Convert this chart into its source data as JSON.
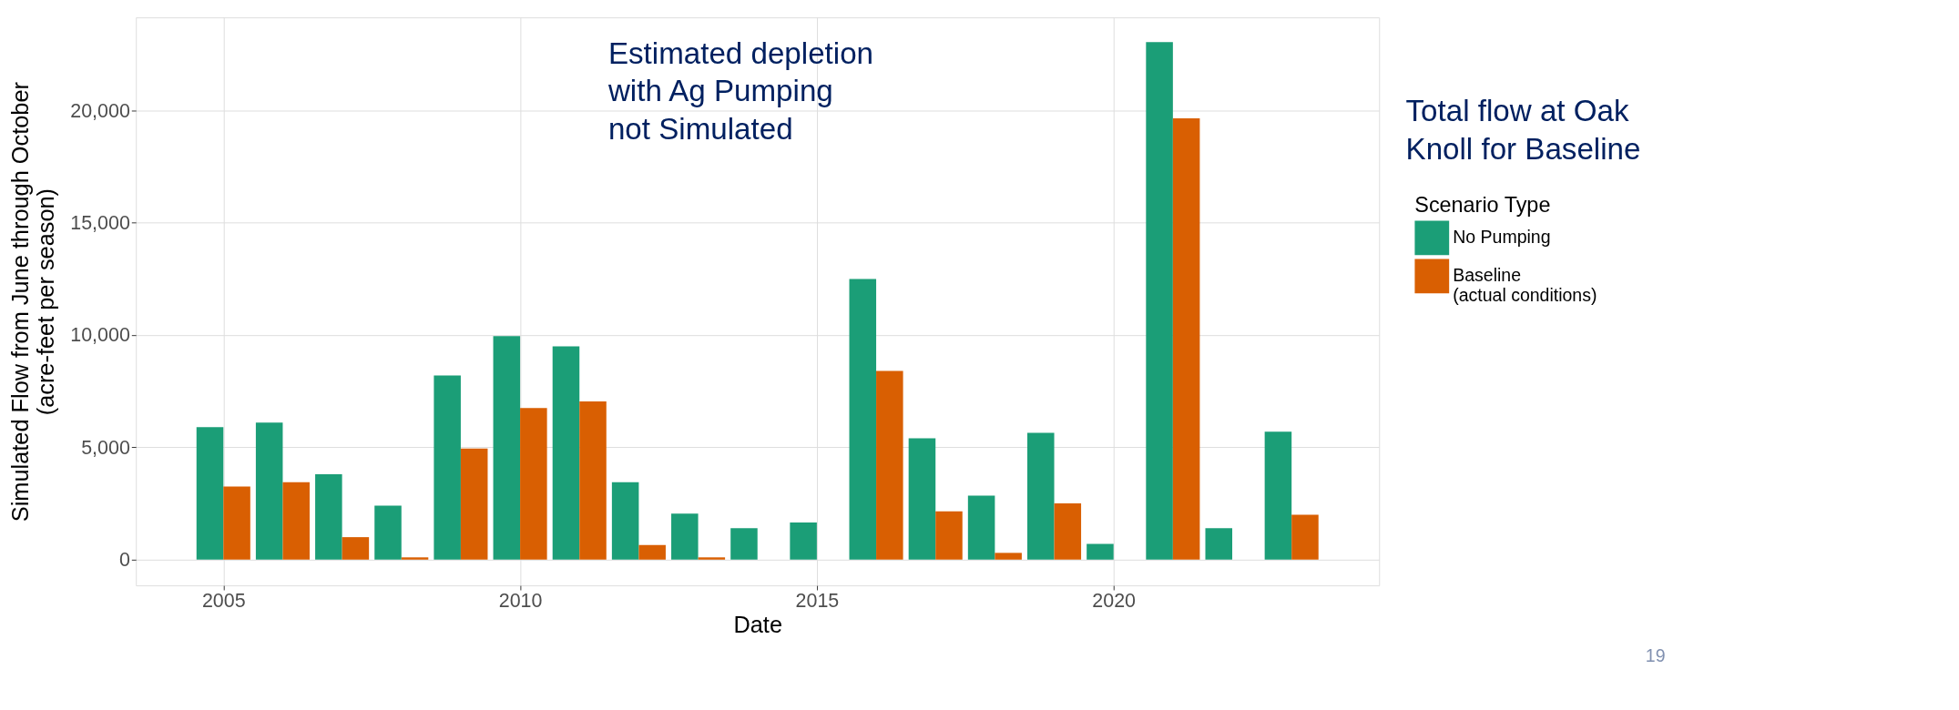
{
  "chart_data": {
    "type": "bar",
    "xlabel": "Date",
    "ylabel": "Simulated Flow from June through October\n(acre-feet per season)",
    "legend_title": "Scenario Type",
    "x": [
      2005,
      2006,
      2007,
      2008,
      2009,
      2010,
      2011,
      2012,
      2013,
      2014,
      2015,
      2016,
      2017,
      2018,
      2019,
      2020,
      2021,
      2022,
      2023
    ],
    "series": [
      {
        "name": "No Pumping",
        "color": "#1b9e77",
        "values": [
          5900,
          6100,
          3800,
          2400,
          8200,
          9950,
          9500,
          3450,
          2050,
          1400,
          1650,
          12500,
          5400,
          2850,
          5650,
          700,
          23050,
          1400,
          5700
        ]
      },
      {
        "name": "Baseline\n(actual conditions)",
        "color": "#d95f02",
        "values": [
          3250,
          3450,
          1000,
          100,
          4950,
          6750,
          7050,
          650,
          100,
          null,
          null,
          8400,
          2150,
          300,
          2500,
          null,
          19650,
          null,
          2000
        ]
      }
    ],
    "xlim": [
      2003.6,
      2024.4
    ],
    "xticks": [
      2005,
      2010,
      2015,
      2020
    ],
    "ylim": [
      -1150,
      24150
    ],
    "yticks": [
      0,
      {
        "value": 5000,
        "label": "5,000"
      },
      {
        "value": 10000,
        "label": "10,000"
      },
      {
        "value": 15000,
        "label": "15,000"
      },
      {
        "value": 20000,
        "label": "20,000"
      }
    ],
    "grid": true,
    "legend": "right",
    "annotations": [
      "Estimated depletion\nwith Ag Pumping\nnot Simulated",
      "Total flow at Oak\nKnoll for Baseline",
      "19"
    ]
  }
}
